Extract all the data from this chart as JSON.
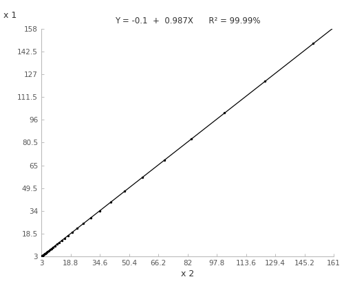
{
  "title": "Y = -0.1  +  0.987X      R² = 99.99%",
  "xlabel": "x 2",
  "ylabel": "x 1",
  "xlim": [
    3,
    161
  ],
  "ylim": [
    3,
    158
  ],
  "xticks": [
    3,
    18.8,
    34.6,
    50.4,
    66.2,
    82,
    97.8,
    113.6,
    129.4,
    145.2,
    161
  ],
  "yticks": [
    3,
    18.5,
    34,
    49.5,
    65,
    80.5,
    96,
    111.5,
    127,
    142.5,
    158
  ],
  "slope": 0.987,
  "intercept": -0.1,
  "scatter_x": [
    3.0,
    3.1,
    3.2,
    3.3,
    3.4,
    3.5,
    3.6,
    3.8,
    4.0,
    4.2,
    4.5,
    4.8,
    5.1,
    5.5,
    6.0,
    6.5,
    7.1,
    7.8,
    8.5,
    9.4,
    10.3,
    11.4,
    12.6,
    14.0,
    15.6,
    17.5,
    19.8,
    22.5,
    25.8,
    29.8,
    34.5,
    40.5,
    48.0,
    57.5,
    69.5,
    84.0,
    102.0,
    124.0,
    150.0
  ],
  "scatter_y": [
    2.9,
    3.0,
    3.1,
    3.2,
    3.3,
    3.4,
    3.5,
    3.6,
    3.8,
    4.0,
    4.3,
    4.6,
    4.9,
    5.3,
    5.8,
    6.3,
    6.9,
    7.6,
    8.3,
    9.2,
    10.1,
    11.2,
    12.4,
    13.7,
    15.3,
    17.2,
    19.5,
    22.1,
    25.4,
    29.3,
    34.0,
    39.9,
    47.3,
    56.7,
    68.5,
    82.9,
    100.7,
    122.4,
    148.1
  ],
  "line_color": "#000000",
  "dot_color": "#000000",
  "spine_color": "#bbbbbb",
  "tick_color": "#555555",
  "background_color": "#ffffff",
  "title_fontsize": 8.5,
  "tick_labelsize": 7.5,
  "xlabel_fontsize": 9,
  "ylabel_fontsize": 9
}
